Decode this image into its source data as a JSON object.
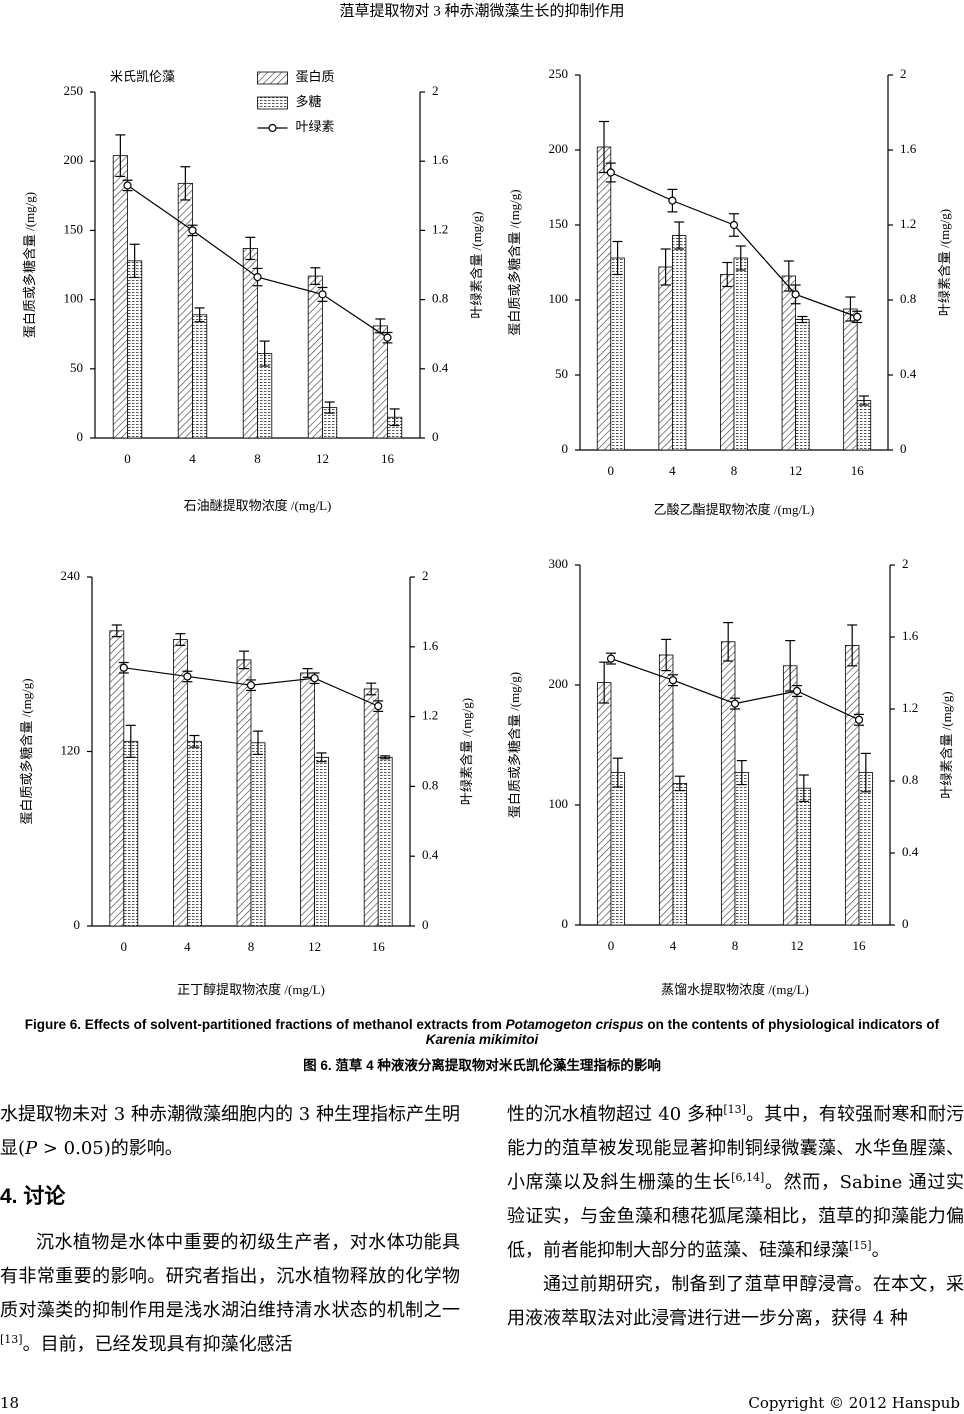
{
  "header": {
    "running_title": "菹草提取物对 3 种赤潮微藻生长的抑制作用"
  },
  "chart_data": [
    {
      "type": "bar",
      "annotation": "米氏凯伦藻",
      "legend": "top",
      "x_label": "石油醚提取物浓度 /(mg/L)",
      "y_label": "蛋白质或多糖含量 /(mg/g)",
      "y2_label": "叶绿素含量 /(mg/g)",
      "categories": [
        "0",
        "4",
        "8",
        "12",
        "16"
      ],
      "ylim": [
        0,
        250
      ],
      "yticks": [
        0,
        50,
        100,
        150,
        200,
        250
      ],
      "y2lim": [
        0,
        2
      ],
      "y2ticks": [
        0,
        0.4,
        0.8,
        1.2,
        1.6,
        2
      ],
      "series": [
        {
          "name": "蛋白质",
          "type": "bar",
          "color": "#000000",
          "values": [
            204,
            184,
            137,
            117,
            81
          ],
          "errors": [
            15,
            12,
            8,
            6,
            5
          ]
        },
        {
          "name": "多糖",
          "type": "bar",
          "color": "#000000",
          "values": [
            128,
            89,
            61,
            22,
            15
          ],
          "errors": [
            12,
            5,
            9,
            4,
            6
          ]
        },
        {
          "name": "叶绿素",
          "type": "line",
          "axis": "y2",
          "color": "#000000",
          "values": [
            1.46,
            1.2,
            0.93,
            0.83,
            0.58
          ],
          "errors": [
            0.03,
            0.03,
            0.05,
            0.04,
            0.03
          ]
        }
      ]
    },
    {
      "type": "bar",
      "x_label": "乙酸乙酯提取物浓度 /(mg/L)",
      "y_label": "蛋白质或多糖含量 /(mg/g)",
      "y2_label": "叶绿素含量 /(mg/g)",
      "categories": [
        "0",
        "4",
        "8",
        "12",
        "16"
      ],
      "ylim": [
        0,
        250
      ],
      "yticks": [
        0,
        50,
        100,
        150,
        200,
        250
      ],
      "y2lim": [
        0,
        2
      ],
      "y2ticks": [
        0,
        0.4,
        0.8,
        1.2,
        1.6,
        2
      ],
      "series": [
        {
          "name": "蛋白质",
          "type": "bar",
          "color": "#000000",
          "values": [
            202,
            122,
            117,
            116,
            94
          ],
          "errors": [
            17,
            12,
            8,
            10,
            8
          ]
        },
        {
          "name": "多糖",
          "type": "bar",
          "color": "#000000",
          "values": [
            128,
            143,
            128,
            87,
            33
          ],
          "errors": [
            11,
            9,
            8,
            2,
            3
          ]
        },
        {
          "name": "叶绿素",
          "type": "line",
          "axis": "y2",
          "color": "#000000",
          "values": [
            1.48,
            1.33,
            1.2,
            0.83,
            0.71
          ],
          "errors": [
            0.05,
            0.06,
            0.06,
            0.05,
            0.03
          ]
        }
      ]
    },
    {
      "type": "bar",
      "x_label": "正丁醇提取物浓度 /(mg/L)",
      "y_label": "蛋白质或多糖含量 /(mg/g)",
      "y2_label": "叶绿素含量 /(mg/g)",
      "categories": [
        "0",
        "4",
        "8",
        "12",
        "16"
      ],
      "ylim": [
        0,
        240
      ],
      "yticks": [
        0,
        120,
        240
      ],
      "y2lim": [
        0,
        2
      ],
      "y2ticks": [
        0,
        0.4,
        0.8,
        1.2,
        1.6,
        2
      ],
      "series": [
        {
          "name": "蛋白质",
          "type": "bar",
          "color": "#000000",
          "values": [
            203,
            197,
            183,
            174,
            163
          ],
          "errors": [
            4,
            4,
            6,
            3,
            4
          ]
        },
        {
          "name": "多糖",
          "type": "bar",
          "color": "#000000",
          "values": [
            127,
            127,
            126,
            116,
            116
          ],
          "errors": [
            11,
            4,
            8,
            3,
            1
          ]
        },
        {
          "name": "叶绿素",
          "type": "line",
          "axis": "y2",
          "color": "#000000",
          "values": [
            1.48,
            1.43,
            1.38,
            1.42,
            1.26
          ],
          "errors": [
            0.03,
            0.03,
            0.03,
            0.03,
            0.03
          ]
        }
      ]
    },
    {
      "type": "bar",
      "x_label": "蒸馏水提取物浓度 /(mg/L)",
      "y_label": "蛋白质或多糖含量 /(mg/g)",
      "y2_label": "叶绿素含量 /(mg/g)",
      "categories": [
        "0",
        "4",
        "8",
        "12",
        "16"
      ],
      "ylim": [
        0,
        300
      ],
      "yticks": [
        0,
        100,
        200,
        300
      ],
      "y2lim": [
        0,
        2
      ],
      "y2ticks": [
        0,
        0.4,
        0.8,
        1.2,
        1.6,
        2
      ],
      "series": [
        {
          "name": "蛋白质",
          "type": "bar",
          "color": "#000000",
          "values": [
            202,
            225,
            236,
            216,
            233
          ],
          "errors": [
            17,
            13,
            16,
            21,
            17
          ]
        },
        {
          "name": "多糖",
          "type": "bar",
          "color": "#000000",
          "values": [
            127,
            118,
            127,
            114,
            127
          ],
          "errors": [
            12,
            6,
            10,
            11,
            16
          ]
        },
        {
          "name": "叶绿素",
          "type": "line",
          "axis": "y2",
          "color": "#000000",
          "values": [
            1.48,
            1.36,
            1.23,
            1.3,
            1.14
          ],
          "errors": [
            0.03,
            0.03,
            0.03,
            0.03,
            0.03
          ]
        }
      ]
    }
  ],
  "figure": {
    "caption_en": [
      {
        "text": "Figure 6. Effects of solvent-partitioned fractions of methanol extracts from "
      },
      {
        "italic": "Potamogeton crispus"
      },
      {
        "text": " on the contents of physiological indicators of "
      },
      {
        "italic": "Karenia mikimitoi"
      }
    ],
    "caption_zh": "图 6. 菹草 4 种液液分离提取物对米氏凯伦藻生理指标的影响"
  },
  "left_column": {
    "paragraph_1": [
      {
        "text": "水提取物未对 3 种赤潮微藻细胞内的 3 种生理指标产生明显("
      },
      {
        "italic": "P"
      },
      {
        "text": " > 0.05)的影响。"
      }
    ],
    "heading": "4. 讨论",
    "paragraph_2": [
      {
        "text": "沉水植物是水体中重要的初级生产者，对水体功能具有非常重要的影响。研究者指出，沉水植物释放的化学物质对藻类的抑制作用是浅水湖泊维持清水状态的机制之一"
      },
      {
        "sup": "[13]"
      },
      {
        "text": "。目前，已经发现具有抑藻化感活"
      }
    ]
  },
  "right_column": {
    "paragraph_1": [
      {
        "text": "性的沉水植物超过 40 多种"
      },
      {
        "sup": "[13]"
      },
      {
        "text": "。其中，有较强耐寒和耐污能力的菹草被发现能显著抑制铜绿微囊藻、水华鱼腥藻、小席藻以及斜生栅藻的生长"
      },
      {
        "sup": "[6,14]"
      },
      {
        "text": "。然而，Sabine 通过实验证实，与金鱼藻和穗花狐尾藻相比，菹草的抑藻能力偏低，前者能抑制大部分的蓝藻、硅藻和绿藻"
      },
      {
        "sup": "[15]"
      },
      {
        "text": "。"
      }
    ],
    "paragraph_2": [
      {
        "text": "通过前期研究，制备到了菹草甲醇浸膏。在本文，采用液液萃取法对此浸膏进行进一步分离，获得 4 种"
      }
    ]
  },
  "footer": {
    "page_number": "18",
    "copyright": "Copyright © 2012 Hanspub"
  }
}
